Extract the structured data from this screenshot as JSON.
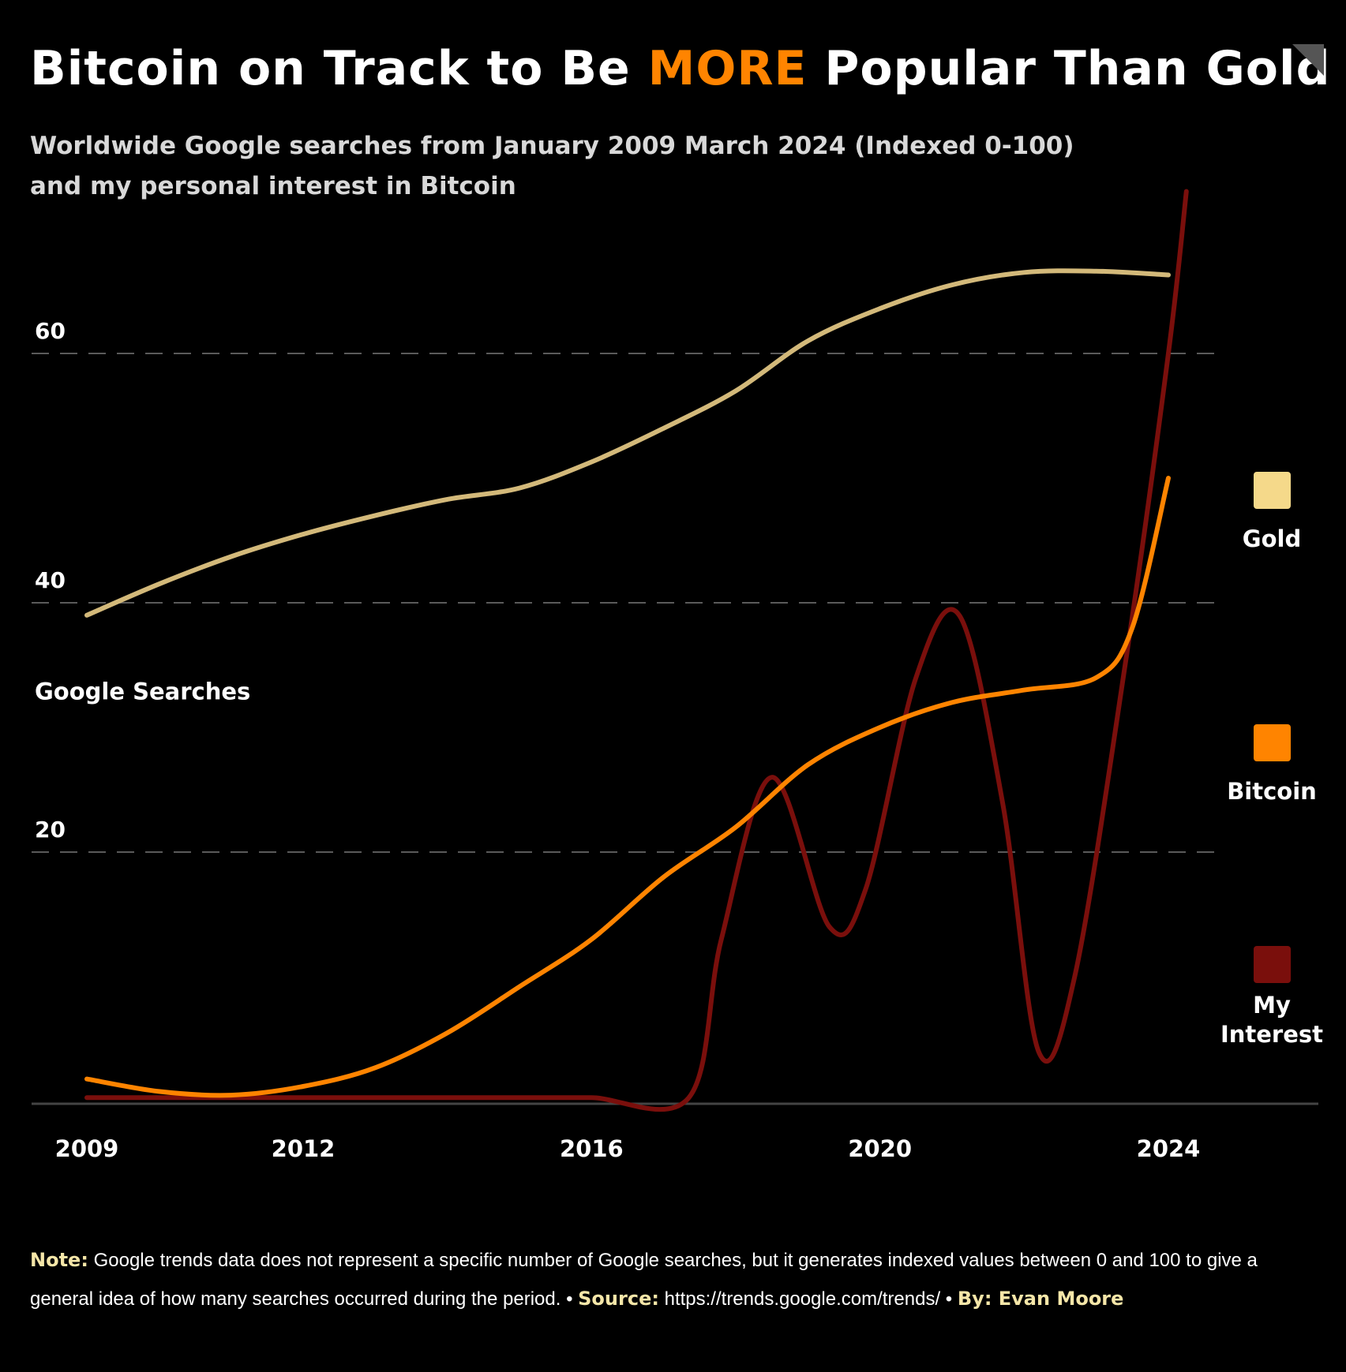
{
  "title": {
    "prefix": "Bitcoin on Track to Be ",
    "highlight": "MORE",
    "suffix": " Popular Than Gold"
  },
  "subtitle": {
    "line1": "Worldwide Google searches from January 2009 March 2024 (Indexed 0-100)",
    "line2": "and my personal interest in Bitcoin"
  },
  "colors": {
    "gold": "#d3b97a",
    "gold_legend": "#f5d98a",
    "bitcoin": "#ff8400",
    "interest": "#7a0f0c",
    "background": "#000000",
    "note_label": "#f5e6a8"
  },
  "chart_data": {
    "type": "line",
    "ylabel": "Google Searches",
    "yticks": [
      20,
      40,
      60
    ],
    "ylim": [
      0,
      70
    ],
    "xlim": [
      2009,
      2025.2
    ],
    "xticks": [
      2009,
      2012,
      2016,
      2020,
      2024
    ],
    "xtick_labels": [
      "2009",
      "2012",
      "2016",
      "2020",
      "2024"
    ],
    "grid": "horizontal dashed",
    "legend_position": "right",
    "series": [
      {
        "name": "Gold",
        "key": "gold",
        "x": [
          2009,
          2010,
          2011,
          2012,
          2013,
          2014,
          2015,
          2016,
          2017,
          2018,
          2019,
          2020,
          2021,
          2022,
          2023,
          2024
        ],
        "y": [
          39.0,
          41.5,
          43.7,
          45.5,
          47.0,
          48.3,
          49.2,
          51.3,
          54.0,
          57.0,
          61.0,
          63.6,
          65.5,
          66.5,
          66.6,
          66.3
        ]
      },
      {
        "name": "Bitcoin",
        "key": "bitcoin",
        "x": [
          2009,
          2010,
          2011,
          2012,
          2013,
          2014,
          2015,
          2016,
          2017,
          2018,
          2019,
          2020,
          2021,
          2022,
          2023,
          2023.5,
          2024
        ],
        "y": [
          1.8,
          0.8,
          0.5,
          1.2,
          2.7,
          5.5,
          9.2,
          13.0,
          18.0,
          22.0,
          27.0,
          30.0,
          32.0,
          33.0,
          34.0,
          38.0,
          50.0
        ]
      },
      {
        "name": "My Interest",
        "key": "interest",
        "x": [
          2009,
          2010,
          2011,
          2012,
          2013,
          2014,
          2015,
          2016,
          2017.35,
          2017.8,
          2018.5,
          2019.3,
          2019.8,
          2020.5,
          2021.1,
          2021.7,
          2022.2,
          2022.7,
          2023.4,
          2024,
          2024.25
        ],
        "y": [
          0.3,
          0.3,
          0.3,
          0.3,
          0.3,
          0.3,
          0.3,
          0.3,
          0.3,
          13.0,
          26.0,
          14.0,
          17.0,
          34.0,
          39.0,
          24.0,
          4.0,
          10.0,
          35.0,
          60.0,
          73.0
        ]
      }
    ],
    "legend": [
      {
        "key": "gold",
        "label": "Gold"
      },
      {
        "key": "bitcoin",
        "label": "Bitcoin"
      },
      {
        "key": "interest",
        "label_line1": "My",
        "label_line2": "Interest"
      }
    ]
  },
  "footer": {
    "note_label": "Note:",
    "note_text": "Google trends data does not represent a specific number of Google searches,  but it generates indexed values between 0 and 100 to give a general idea of how many searches occurred during the period. •",
    "source_label": "Source:",
    "source_text": "https://trends.google.com/trends/ •",
    "by_label": "By: Evan Moore"
  }
}
